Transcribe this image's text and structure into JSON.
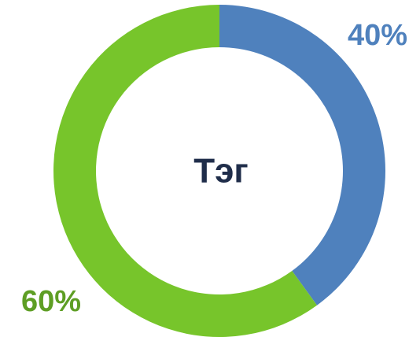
{
  "chart_data": {
    "type": "donut",
    "center_text": "Тэг",
    "categories": [
      null,
      null
    ],
    "values": [
      40,
      60
    ],
    "value_labels": [
      "40%",
      "60%"
    ],
    "colors": [
      "#4f81bd",
      "#77c52b"
    ],
    "label_colors": [
      "#4f81bd",
      "#5e9e24"
    ]
  }
}
